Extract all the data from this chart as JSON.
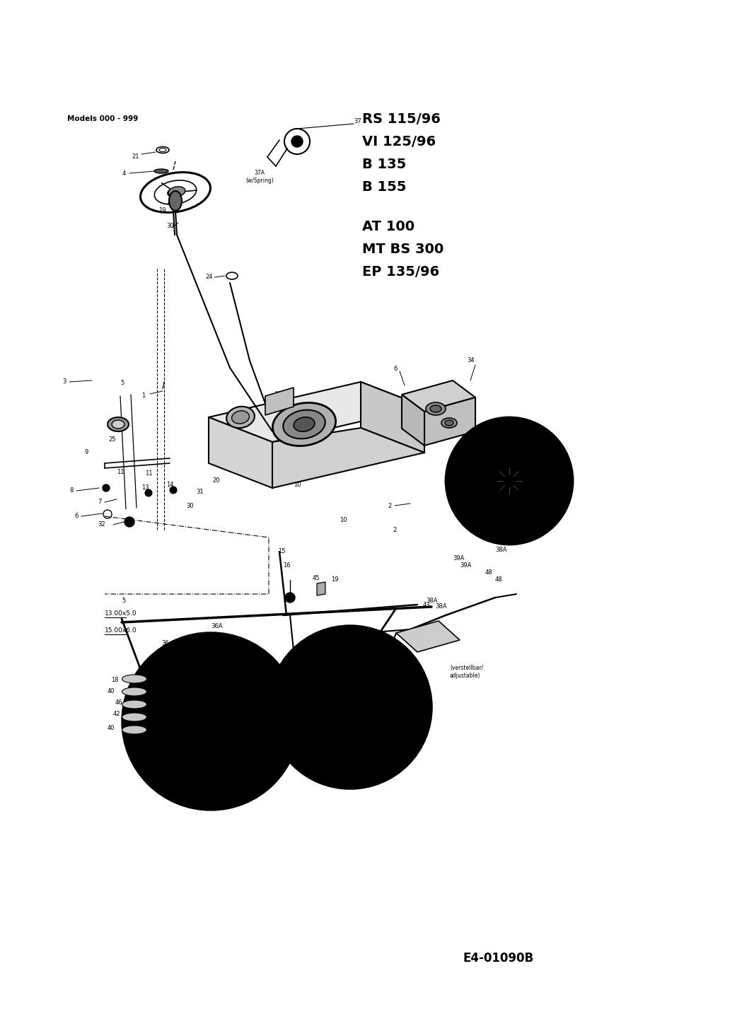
{
  "bg_color": "#ffffff",
  "fig_width": 10.32,
  "fig_height": 14.31,
  "dpi": 100,
  "title_models": "Models 000 - 999",
  "model_lines_group1": [
    "RS 115/96",
    "VI 125/96",
    "B 135",
    "B 155"
  ],
  "model_lines_group2": [
    "AT 100",
    "MT BS 300",
    "EP 135/96"
  ],
  "diagram_code": "E4-01090B",
  "note_37a": "37A\n(w/Spring)",
  "note_verstellbar": "(verstellbar/\nadjustable)"
}
